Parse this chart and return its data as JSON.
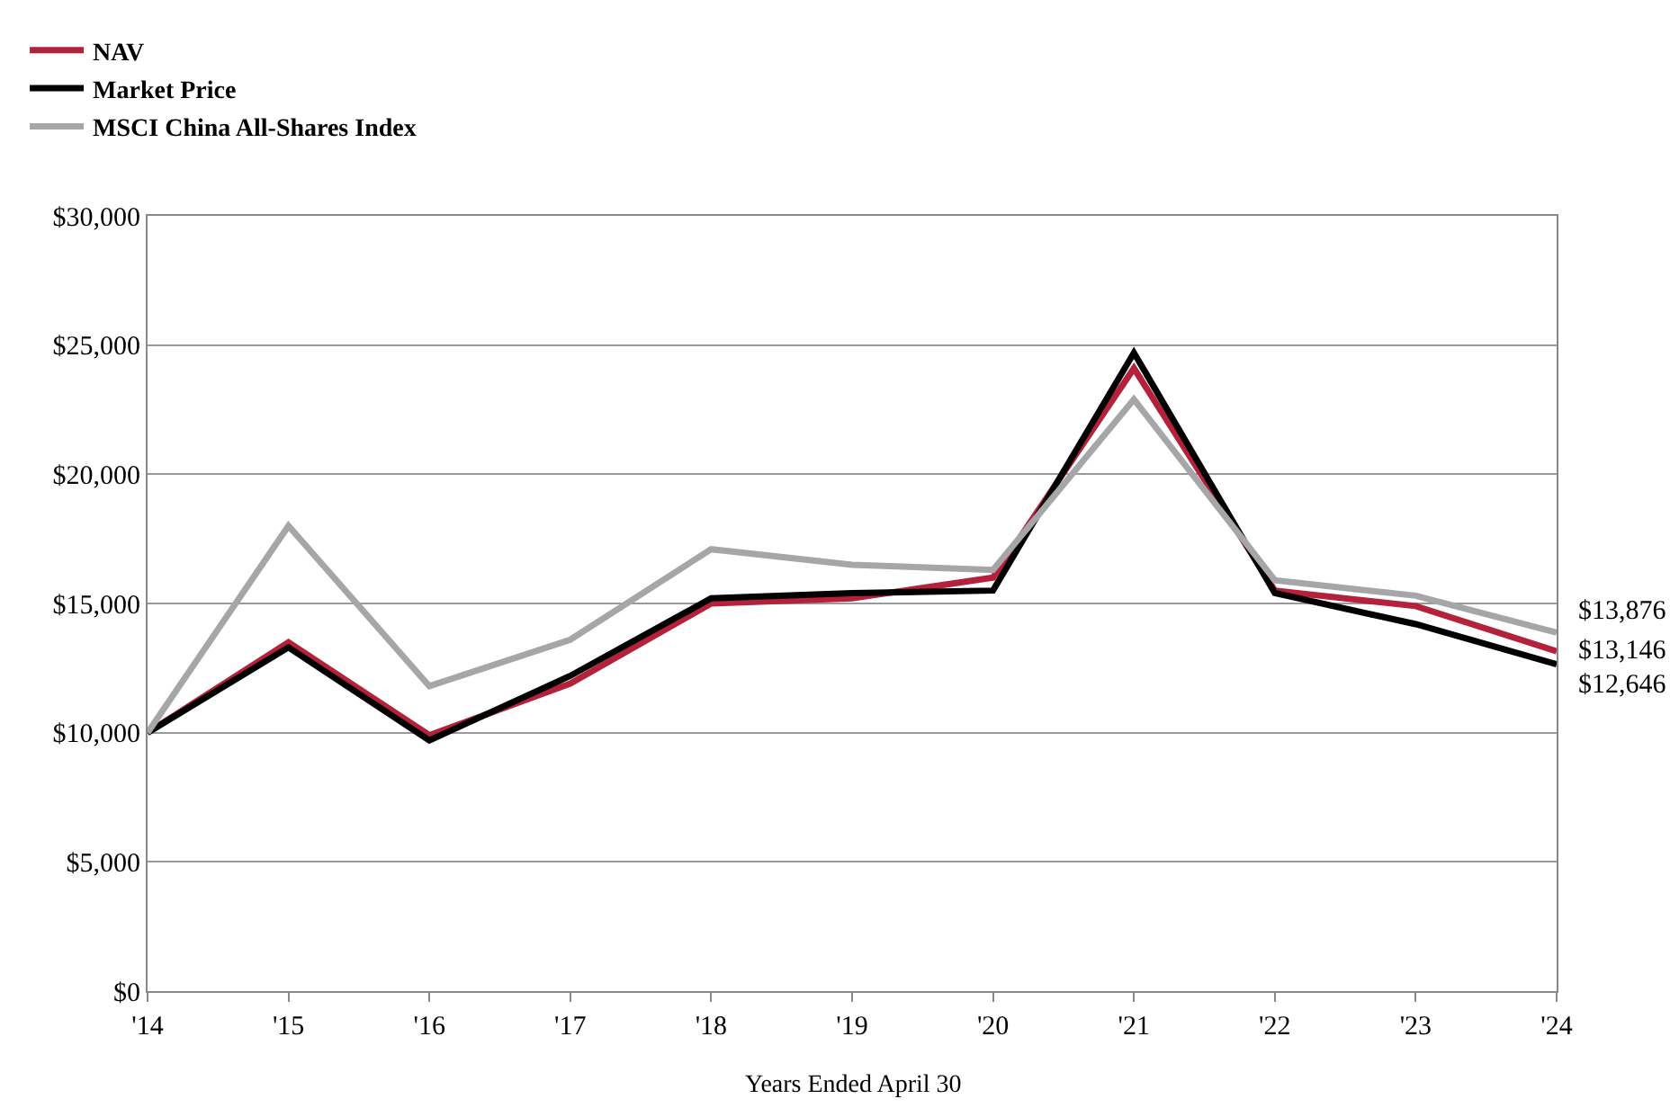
{
  "chart_data": {
    "type": "line",
    "xlabel": "Years Ended April 30",
    "categories": [
      "'14",
      "'15",
      "'16",
      "'17",
      "'18",
      "'19",
      "'20",
      "'21",
      "'22",
      "'23",
      "'24"
    ],
    "series": [
      {
        "name": "NAV",
        "color": "#b5203a",
        "values": [
          10000,
          13500,
          9900,
          11900,
          15000,
          15200,
          16000,
          24100,
          15500,
          14900,
          13146
        ]
      },
      {
        "name": "Market Price",
        "color": "#000000",
        "values": [
          10000,
          13300,
          9700,
          12200,
          15200,
          15400,
          15500,
          24700,
          15400,
          14200,
          12646
        ]
      },
      {
        "name": "MSCI China All-Shares Index",
        "color": "#a6a6a8",
        "values": [
          10000,
          18000,
          11800,
          13600,
          17100,
          16500,
          16300,
          22900,
          15900,
          15300,
          13876
        ]
      }
    ],
    "ylim": [
      0,
      30000
    ],
    "yticks": [
      {
        "value": 0,
        "label": "$0"
      },
      {
        "value": 5000,
        "label": "$5,000"
      },
      {
        "value": 10000,
        "label": "$10,000"
      },
      {
        "value": 15000,
        "label": "$15,000"
      },
      {
        "value": 20000,
        "label": "$20,000"
      },
      {
        "value": 25000,
        "label": "$25,000"
      },
      {
        "value": 30000,
        "label": "$30,000"
      }
    ],
    "grid": "y",
    "legend": "top left",
    "marker": "none",
    "line_style": "solid",
    "annotations": [
      {
        "text": "$13,876",
        "x": "'24",
        "y": 13876
      },
      {
        "text": "$13,146",
        "x": "'24",
        "y": 13146
      },
      {
        "text": "$12,646",
        "x": "'24",
        "y": 12646
      }
    ]
  }
}
